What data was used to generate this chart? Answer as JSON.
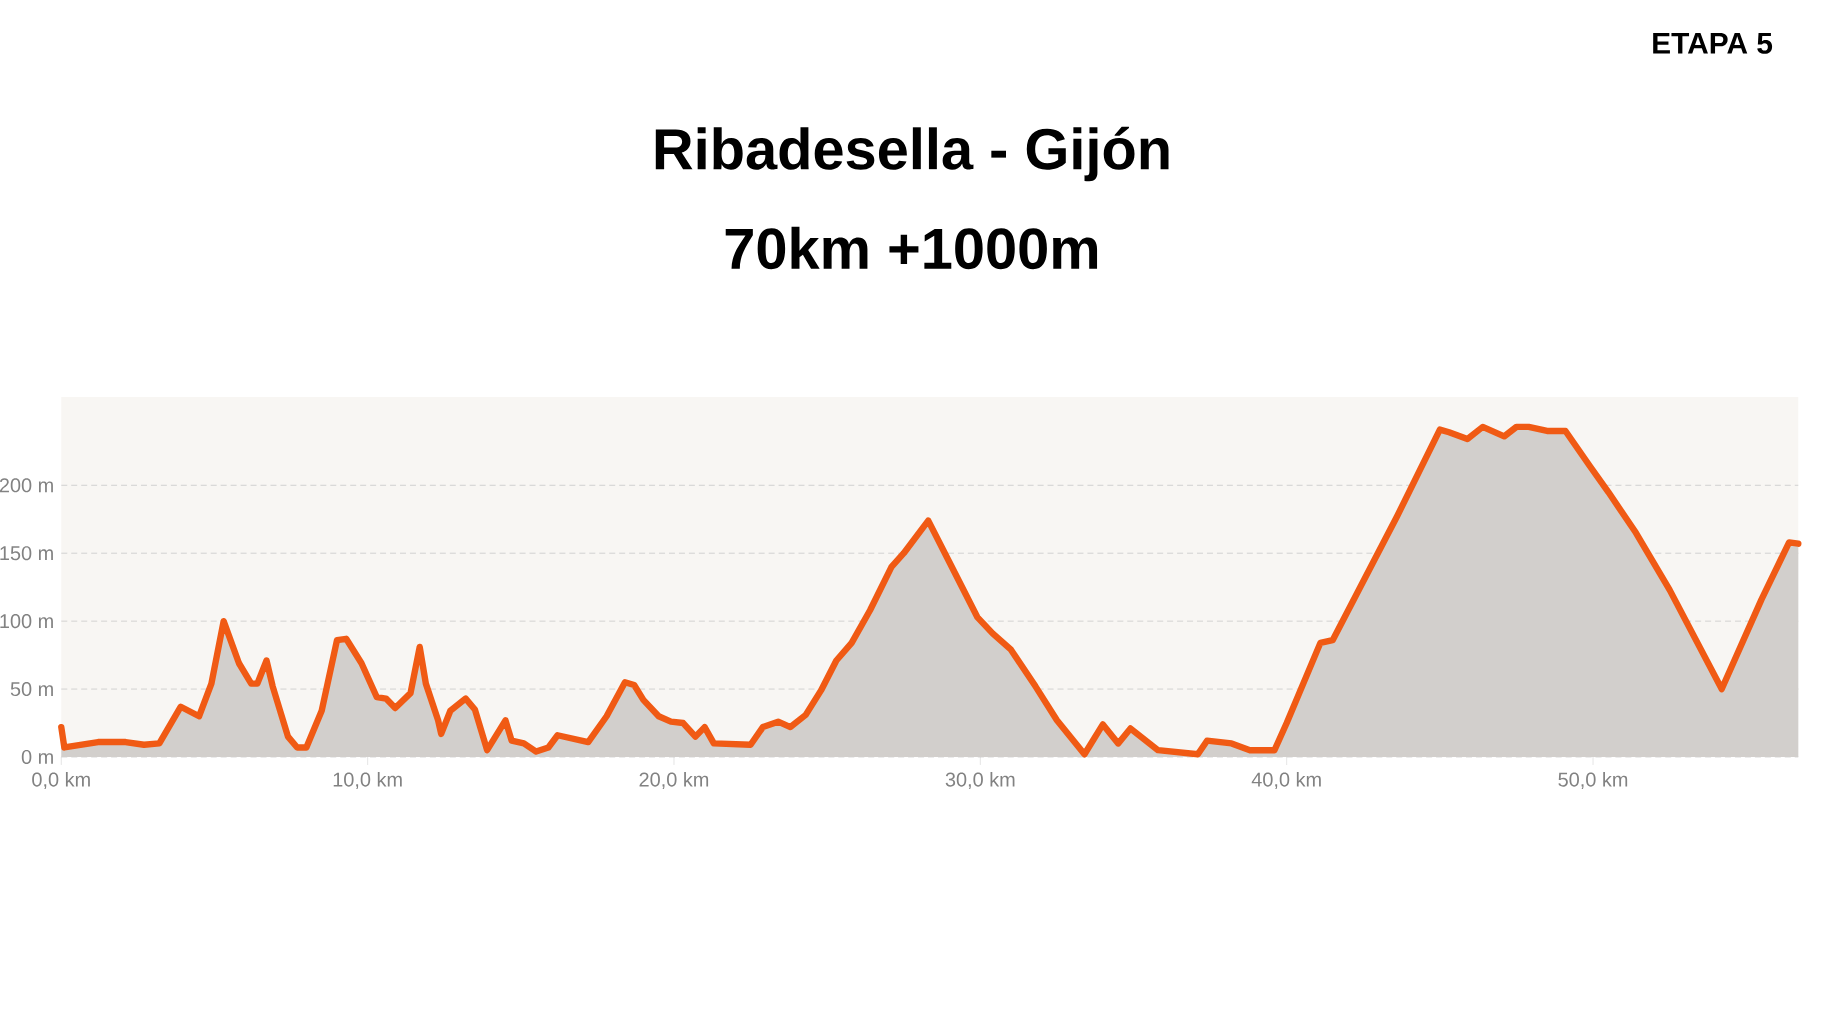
{
  "chart_data": {
    "type": "area",
    "title": "Ribadesella - Gijón",
    "subtitle": "70km +1000m",
    "annotations": [
      "ETAPA 5"
    ],
    "x": [
      0,
      0.1,
      1.2,
      2.1,
      2.7,
      3.2,
      3.9,
      4.5,
      4.9,
      5.3,
      5.8,
      6.2,
      6.4,
      6.7,
      6.9,
      7.4,
      7.7,
      8.0,
      8.5,
      9.0,
      9.3,
      9.8,
      10.3,
      10.6,
      10.9,
      11.4,
      11.7,
      11.9,
      12.3,
      12.4,
      12.7,
      13.2,
      13.5,
      13.9,
      14.5,
      14.7,
      15.1,
      15.5,
      15.9,
      16.2,
      17.2,
      17.8,
      18.4,
      18.7,
      19.0,
      19.5,
      19.9,
      20.3,
      20.7,
      21.0,
      21.3,
      22.5,
      22.9,
      23.4,
      23.8,
      24.3,
      24.8,
      25.3,
      25.8,
      26.4,
      27.1,
      27.5,
      28.3,
      29.0,
      29.9,
      30.4,
      31.0,
      31.8,
      32.5,
      33.4,
      34.0,
      34.5,
      34.9,
      35.8,
      37.1,
      37.4,
      38.2,
      38.8,
      39.6,
      40.0,
      41.1,
      41.5,
      42.7,
      43.6,
      45.0,
      45.3,
      45.9,
      46.4,
      47.1,
      47.5,
      47.9,
      48.5,
      49.1,
      49.9,
      50.5,
      51.4,
      52.5,
      54.2,
      55.5,
      56.4,
      56.7
    ],
    "series": [
      {
        "color": "#f05a14",
        "values": [
          22,
          7,
          11,
          11,
          9,
          10,
          37,
          30,
          54,
          100,
          69,
          54,
          54,
          71,
          52,
          15,
          7,
          7,
          34,
          86,
          87,
          69,
          44,
          43,
          36,
          47,
          81,
          54,
          27,
          17,
          34,
          43,
          35,
          5,
          27,
          12,
          10,
          4,
          7,
          16,
          11,
          30,
          55,
          53,
          42,
          30,
          26,
          25,
          15,
          22,
          10,
          9,
          22,
          26,
          22,
          31,
          49,
          71,
          84,
          108,
          140,
          150,
          174,
          143,
          103,
          91,
          79,
          52,
          27,
          2,
          24,
          10,
          21,
          5,
          2,
          12,
          10,
          5,
          5,
          25,
          84,
          86,
          138,
          177,
          241,
          239,
          234,
          243,
          236,
          243,
          243,
          240,
          240,
          214,
          195,
          165,
          123,
          50,
          116,
          158,
          157
        ]
      }
    ],
    "xlim": [
      0,
      56.7
    ],
    "ylim": [
      0,
      265
    ],
    "xticks": [
      {
        "value": 0,
        "label": "0,0 km"
      },
      {
        "value": 10,
        "label": "10,0 km"
      },
      {
        "value": 20,
        "label": "20,0 km"
      },
      {
        "value": 30,
        "label": "30,0 km"
      },
      {
        "value": 40,
        "label": "40,0 km"
      },
      {
        "value": 50,
        "label": "50,0 km"
      }
    ],
    "yticks": [
      {
        "value": 0,
        "label": "0 m"
      },
      {
        "value": 50,
        "label": "50 m"
      },
      {
        "value": 100,
        "label": "100 m"
      },
      {
        "value": 150,
        "label": "150 m"
      },
      {
        "value": 200,
        "label": "200 m"
      }
    ],
    "grid": "y"
  }
}
